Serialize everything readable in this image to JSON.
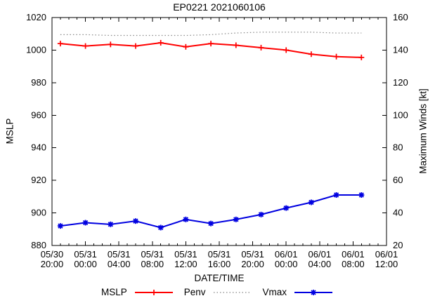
{
  "title": "EP0221 2021060106",
  "axes": {
    "left_label": "MSLP",
    "right_label": "Maximum Winds [kt]",
    "x_label": "DATE/TIME"
  },
  "colors": {
    "mslp": "#ff0000",
    "penv": "#888888",
    "vmax": "#0000e0",
    "axis": "#000000"
  },
  "chart_data": {
    "type": "line",
    "title": "EP0221 2021060106",
    "xlabel": "DATE/TIME",
    "ylabel_left": "MSLP",
    "ylabel_right": "Maximum Winds [kt]",
    "grid": false,
    "legend_position": "bottom-center",
    "x_range_hours": [
      0,
      40
    ],
    "x_major_step_hours": 4,
    "x_minor_step_hours": 1,
    "x_tick_labels": [
      [
        "05/30",
        "20:00"
      ],
      [
        "05/31",
        "00:00"
      ],
      [
        "05/31",
        "04:00"
      ],
      [
        "05/31",
        "08:00"
      ],
      [
        "05/31",
        "12:00"
      ],
      [
        "05/31",
        "16:00"
      ],
      [
        "05/31",
        "20:00"
      ],
      [
        "06/01",
        "00:00"
      ],
      [
        "06/01",
        "04:00"
      ],
      [
        "06/01",
        "08:00"
      ],
      [
        "06/01",
        "12:00"
      ]
    ],
    "y_left_range": [
      880,
      1020
    ],
    "y_right_range": [
      20,
      160
    ],
    "y_tick_step": 20,
    "x_hours": [
      1,
      4,
      7,
      10,
      13,
      16,
      19,
      22,
      25,
      28,
      31,
      34,
      37
    ],
    "x_times": [
      "05/30 21:00",
      "05/31 00:00",
      "05/31 03:00",
      "05/31 06:00",
      "05/31 09:00",
      "05/31 12:00",
      "05/31 15:00",
      "05/31 18:00",
      "05/31 21:00",
      "06/01 00:00",
      "06/01 03:00",
      "06/01 06:00",
      "06/01 09:00"
    ],
    "series": [
      {
        "name": "MSLP",
        "axis": "left",
        "color": "#ff0000",
        "marker": "plus",
        "line": "solid",
        "values": [
          1004,
          1002.5,
          1003.5,
          1002.5,
          1004.5,
          1002,
          1004,
          1003,
          1001.5,
          1000,
          997.5,
          996,
          995.5
        ]
      },
      {
        "name": "Penv",
        "axis": "left",
        "color": "#888888",
        "marker": "none",
        "line": "dotted",
        "values": [
          1009.5,
          1009.5,
          1009,
          1009,
          1009,
          1009,
          1009.5,
          1010.5,
          1011,
          1011,
          1011,
          1010.5,
          1010.5
        ]
      },
      {
        "name": "Vmax",
        "axis": "right",
        "color": "#0000e0",
        "marker": "asterisk",
        "line": "solid",
        "values": [
          32,
          34,
          33,
          35,
          31,
          36,
          33.5,
          36,
          39,
          43,
          46.5,
          51,
          51
        ]
      }
    ]
  }
}
